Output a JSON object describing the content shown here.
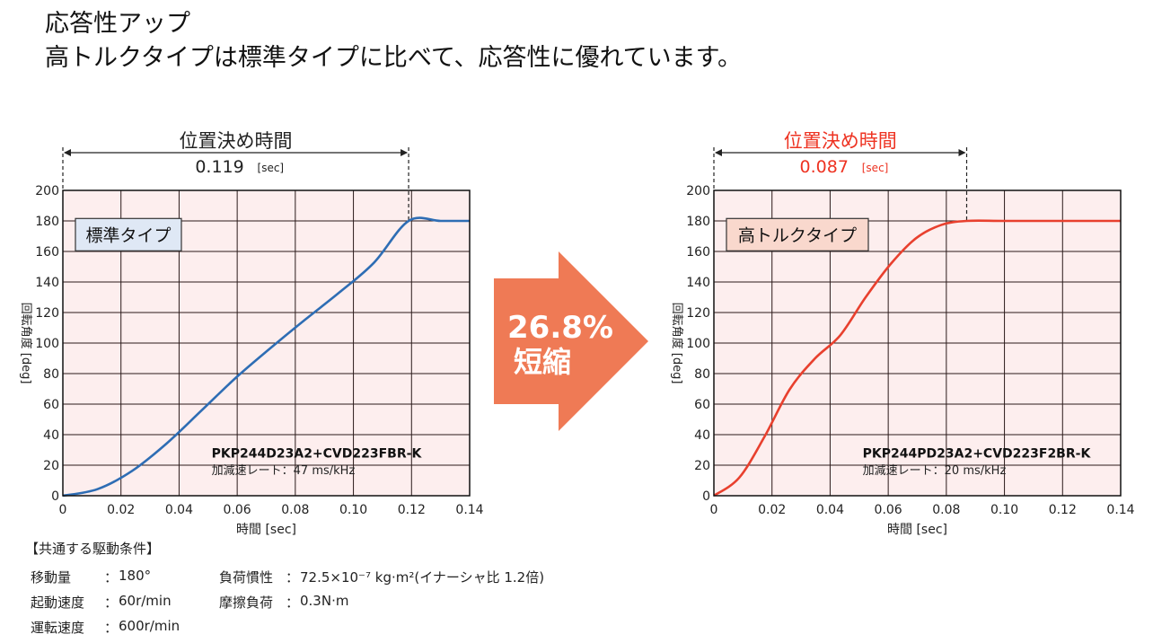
{
  "header": {
    "line1": "応答性アップ",
    "line2": "高トルクタイプは標準タイプに比べて、応答性に優れています。"
  },
  "arrow": {
    "line1": "26.8%",
    "line2": "短縮",
    "color": "#ef7a55"
  },
  "conditions": {
    "title": "【共通する駆動条件】",
    "items": [
      {
        "label": "移動量",
        "sep": "：",
        "value": "180°"
      },
      {
        "label": "起動速度",
        "sep": "：",
        "value": "60r/min"
      },
      {
        "label": "運転速度",
        "sep": "：",
        "value": "600r/min"
      },
      {
        "label": "負荷慣性",
        "sep": "：",
        "value": "72.5×10⁻⁷ kg·m²(イナーシャ比 1.2倍)"
      },
      {
        "label": "摩擦負荷",
        "sep": "：",
        "value": "0.3N·m"
      }
    ]
  },
  "chart_data": [
    {
      "type": "line",
      "xlabel": "時間 [sec]",
      "ylabel": "回転角度 [deg]",
      "xlim": [
        0,
        0.14
      ],
      "ylim": [
        0,
        200
      ],
      "xticks": [
        "0",
        "0.02",
        "0.04",
        "0.06",
        "0.08",
        "0.10",
        "0.12",
        "0.14"
      ],
      "yticks": [
        "0",
        "20",
        "40",
        "60",
        "80",
        "100",
        "120",
        "140",
        "160",
        "180",
        "200"
      ],
      "grid": true,
      "label_box": "標準タイプ",
      "label_box_color": "#dfe8f5",
      "positioning_title": "位置決め時間",
      "positioning_time": "0.119",
      "positioning_unit": "[sec]",
      "positioning_color": "#222222",
      "model": "PKP244D23A2+CVD223FBR-K",
      "rate": "加減速レート：47 ms/kHz",
      "line_color": "#2e6db4",
      "series": [
        {
          "x": [
            0,
            0.0119,
            0.0238,
            0.0357,
            0.0476,
            0.0595,
            0.0714,
            0.0833,
            0.0952,
            0.1071,
            0.119,
            0.13,
            0.14
          ],
          "values": [
            0,
            4.3,
            16.2,
            34.2,
            55.6,
            77.2,
            96.6,
            115.2,
            133.2,
            152.7,
            180,
            180,
            180
          ]
        }
      ]
    },
    {
      "type": "line",
      "xlabel": "時間 [sec]",
      "ylabel": "回転角度 [deg]",
      "xlim": [
        0,
        0.14
      ],
      "ylim": [
        0,
        200
      ],
      "xticks": [
        "0",
        "0.02",
        "0.04",
        "0.06",
        "0.08",
        "0.10",
        "0.12",
        "0.14"
      ],
      "yticks": [
        "0",
        "20",
        "40",
        "60",
        "80",
        "100",
        "120",
        "140",
        "160",
        "180",
        "200"
      ],
      "grid": true,
      "label_box": "高トルクタイプ",
      "label_box_color": "#f9d8cd",
      "positioning_title": "位置決め時間",
      "positioning_time": "0.087",
      "positioning_unit": "[sec]",
      "positioning_color": "#ee3322",
      "model": "PKP244PD23A2+CVD223F2BR-K",
      "rate": "加減速レート：20 ms/kHz",
      "line_color": "#e8402e",
      "series": [
        {
          "x": [
            0,
            0.0087,
            0.0174,
            0.0261,
            0.0348,
            0.0435,
            0.0522,
            0.0609,
            0.0696,
            0.0783,
            0.087,
            0.1,
            0.12,
            0.14
          ],
          "values": [
            0,
            11.8,
            38.6,
            69.7,
            89.9,
            105.1,
            129.9,
            151.9,
            168.7,
            177.4,
            180,
            180,
            180,
            180
          ]
        }
      ]
    }
  ]
}
